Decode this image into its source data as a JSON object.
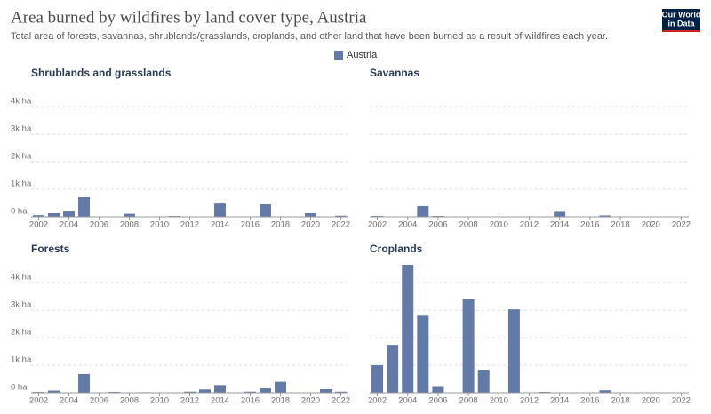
{
  "title": "Area burned by wildfires by land cover type, Austria",
  "subtitle": "Total area of forests, savannas, shrublands/grasslands, croplands, and other land that have been burned as a result of wildfires each year.",
  "logo": [
    "Our World",
    "in Data"
  ],
  "legend": {
    "label": "Austria",
    "color": "#6379a8"
  },
  "chart_data": [
    {
      "type": "bar",
      "title": "Shrublands and grasslands",
      "color": "#6379a8",
      "x": [
        2002,
        2003,
        2004,
        2005,
        2006,
        2007,
        2008,
        2009,
        2010,
        2011,
        2012,
        2013,
        2014,
        2015,
        2016,
        2017,
        2018,
        2019,
        2020,
        2021,
        2022
      ],
      "values": [
        60,
        130,
        190,
        710,
        0,
        0,
        110,
        0,
        0,
        30,
        0,
        0,
        480,
        0,
        0,
        450,
        0,
        0,
        130,
        0,
        40
      ],
      "xlim": [
        2001.5,
        2022.5
      ],
      "xticks": [
        2002,
        2004,
        2006,
        2008,
        2010,
        2012,
        2014,
        2016,
        2018,
        2020,
        2022
      ],
      "ylim": [
        0,
        4650
      ],
      "yticks": [
        {
          "value": 0,
          "label": "0 ha"
        },
        {
          "value": 1000,
          "label": "1k ha"
        },
        {
          "value": 2000,
          "label": "2k ha"
        },
        {
          "value": 3000,
          "label": "3k ha"
        },
        {
          "value": 4000,
          "label": "4k ha"
        }
      ],
      "grid": true
    },
    {
      "type": "bar",
      "title": "Savannas",
      "color": "#6379a8",
      "x": [
        2002,
        2003,
        2004,
        2005,
        2006,
        2007,
        2008,
        2009,
        2010,
        2011,
        2012,
        2013,
        2014,
        2015,
        2016,
        2017,
        2018,
        2019,
        2020,
        2021,
        2022
      ],
      "values": [
        30,
        0,
        0,
        390,
        30,
        0,
        0,
        0,
        0,
        0,
        0,
        0,
        180,
        0,
        0,
        50,
        0,
        0,
        0,
        0,
        0
      ],
      "xlim": [
        2001.5,
        2022.5
      ],
      "xticks": [
        2002,
        2004,
        2006,
        2008,
        2010,
        2012,
        2014,
        2016,
        2018,
        2020,
        2022
      ],
      "ylim": [
        0,
        4650
      ],
      "yticks": [
        0,
        1000,
        2000,
        3000,
        4000
      ],
      "grid": true
    },
    {
      "type": "bar",
      "title": "Forests",
      "color": "#6379a8",
      "x": [
        2002,
        2003,
        2004,
        2005,
        2006,
        2007,
        2008,
        2009,
        2010,
        2011,
        2012,
        2013,
        2014,
        2015,
        2016,
        2017,
        2018,
        2019,
        2020,
        2021,
        2022
      ],
      "values": [
        30,
        80,
        0,
        680,
        0,
        30,
        0,
        20,
        0,
        10,
        40,
        120,
        280,
        0,
        40,
        160,
        400,
        0,
        0,
        130,
        40
      ],
      "xlim": [
        2001.5,
        2022.5
      ],
      "xticks": [
        2002,
        2004,
        2006,
        2008,
        2010,
        2012,
        2014,
        2016,
        2018,
        2020,
        2022
      ],
      "ylim": [
        0,
        4650
      ],
      "yticks": [
        {
          "value": 0,
          "label": "0 ha"
        },
        {
          "value": 1000,
          "label": "1k ha"
        },
        {
          "value": 2000,
          "label": "2k ha"
        },
        {
          "value": 3000,
          "label": "3k ha"
        },
        {
          "value": 4000,
          "label": "4k ha"
        }
      ],
      "grid": true
    },
    {
      "type": "bar",
      "title": "Croplands",
      "color": "#6379a8",
      "x": [
        2002,
        2003,
        2004,
        2005,
        2006,
        2007,
        2008,
        2009,
        2010,
        2011,
        2012,
        2013,
        2014,
        2015,
        2016,
        2017,
        2018,
        2019,
        2020,
        2021,
        2022
      ],
      "values": [
        1000,
        1740,
        4650,
        2800,
        210,
        0,
        3390,
        810,
        0,
        3030,
        10,
        30,
        10,
        0,
        0,
        90,
        0,
        0,
        0,
        0,
        0
      ],
      "xlim": [
        2001.5,
        2022.5
      ],
      "xticks": [
        2002,
        2004,
        2006,
        2008,
        2010,
        2012,
        2014,
        2016,
        2018,
        2020,
        2022
      ],
      "ylim": [
        0,
        4650
      ],
      "yticks": [
        0,
        1000,
        2000,
        3000,
        4000
      ],
      "grid": true
    }
  ]
}
